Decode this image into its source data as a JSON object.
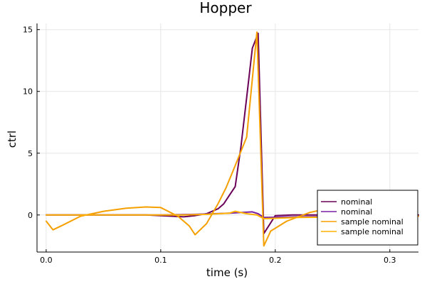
{
  "chart_data": {
    "type": "line",
    "title": "Hopper",
    "xlabel": "time (s)",
    "ylabel": "ctrl",
    "xlim": [
      -0.008,
      0.325
    ],
    "ylim": [
      -3.0,
      15.5
    ],
    "xticks": [
      0.0,
      0.1,
      0.2,
      0.3
    ],
    "xtick_labels": [
      "0.0",
      "0.1",
      "0.2",
      "0.3"
    ],
    "yticks": [
      0,
      5,
      10,
      15
    ],
    "ytick_labels": [
      "0",
      "5",
      "10",
      "15"
    ],
    "grid": true,
    "legend_position": "bottom-right",
    "series": [
      {
        "name": "nominal",
        "color": "#6a0057",
        "x": [
          0.0,
          0.06,
          0.087,
          0.1,
          0.11,
          0.12,
          0.13,
          0.14,
          0.15,
          0.155,
          0.16,
          0.165,
          0.17,
          0.175,
          0.18,
          0.185,
          0.19,
          0.2,
          0.215,
          0.325
        ],
        "y": [
          0.0,
          0.0,
          0.0,
          -0.05,
          -0.1,
          -0.15,
          -0.05,
          0.1,
          0.5,
          0.9,
          1.6,
          2.3,
          5.5,
          9.5,
          13.5,
          14.7,
          -1.5,
          -0.05,
          0.0,
          0.0
        ]
      },
      {
        "name": "nominal",
        "color": "#7a1fa2",
        "x": [
          0.0,
          0.05,
          0.1,
          0.13,
          0.16,
          0.18,
          0.185,
          0.19,
          0.22,
          0.325
        ],
        "y": [
          0.0,
          0.0,
          0.0,
          0.05,
          0.15,
          0.25,
          0.1,
          -0.2,
          -0.15,
          -0.1
        ]
      },
      {
        "name": "sample nominal",
        "color": "#f5a000",
        "x": [
          0.0,
          0.006,
          0.015,
          0.03,
          0.05,
          0.07,
          0.087,
          0.1,
          0.115,
          0.125,
          0.13,
          0.14,
          0.15,
          0.157,
          0.165,
          0.175,
          0.184,
          0.19,
          0.196,
          0.21,
          0.23,
          0.25,
          0.26
        ],
        "y": [
          -0.5,
          -1.2,
          -0.8,
          -0.1,
          0.3,
          0.55,
          0.65,
          0.6,
          -0.1,
          -0.9,
          -1.6,
          -0.7,
          0.9,
          2.2,
          4.0,
          6.3,
          14.8,
          -2.5,
          -1.3,
          -0.5,
          0.2,
          0.6,
          0.75
        ]
      },
      {
        "name": "sample nominal",
        "color": "#ffb100",
        "x": [
          0.0,
          0.05,
          0.1,
          0.12,
          0.14,
          0.16,
          0.165,
          0.175,
          0.184,
          0.19,
          0.22,
          0.325
        ],
        "y": [
          0.0,
          0.0,
          0.0,
          0.0,
          0.05,
          0.15,
          0.3,
          0.1,
          0.0,
          -0.3,
          -0.2,
          -0.1
        ]
      }
    ]
  }
}
